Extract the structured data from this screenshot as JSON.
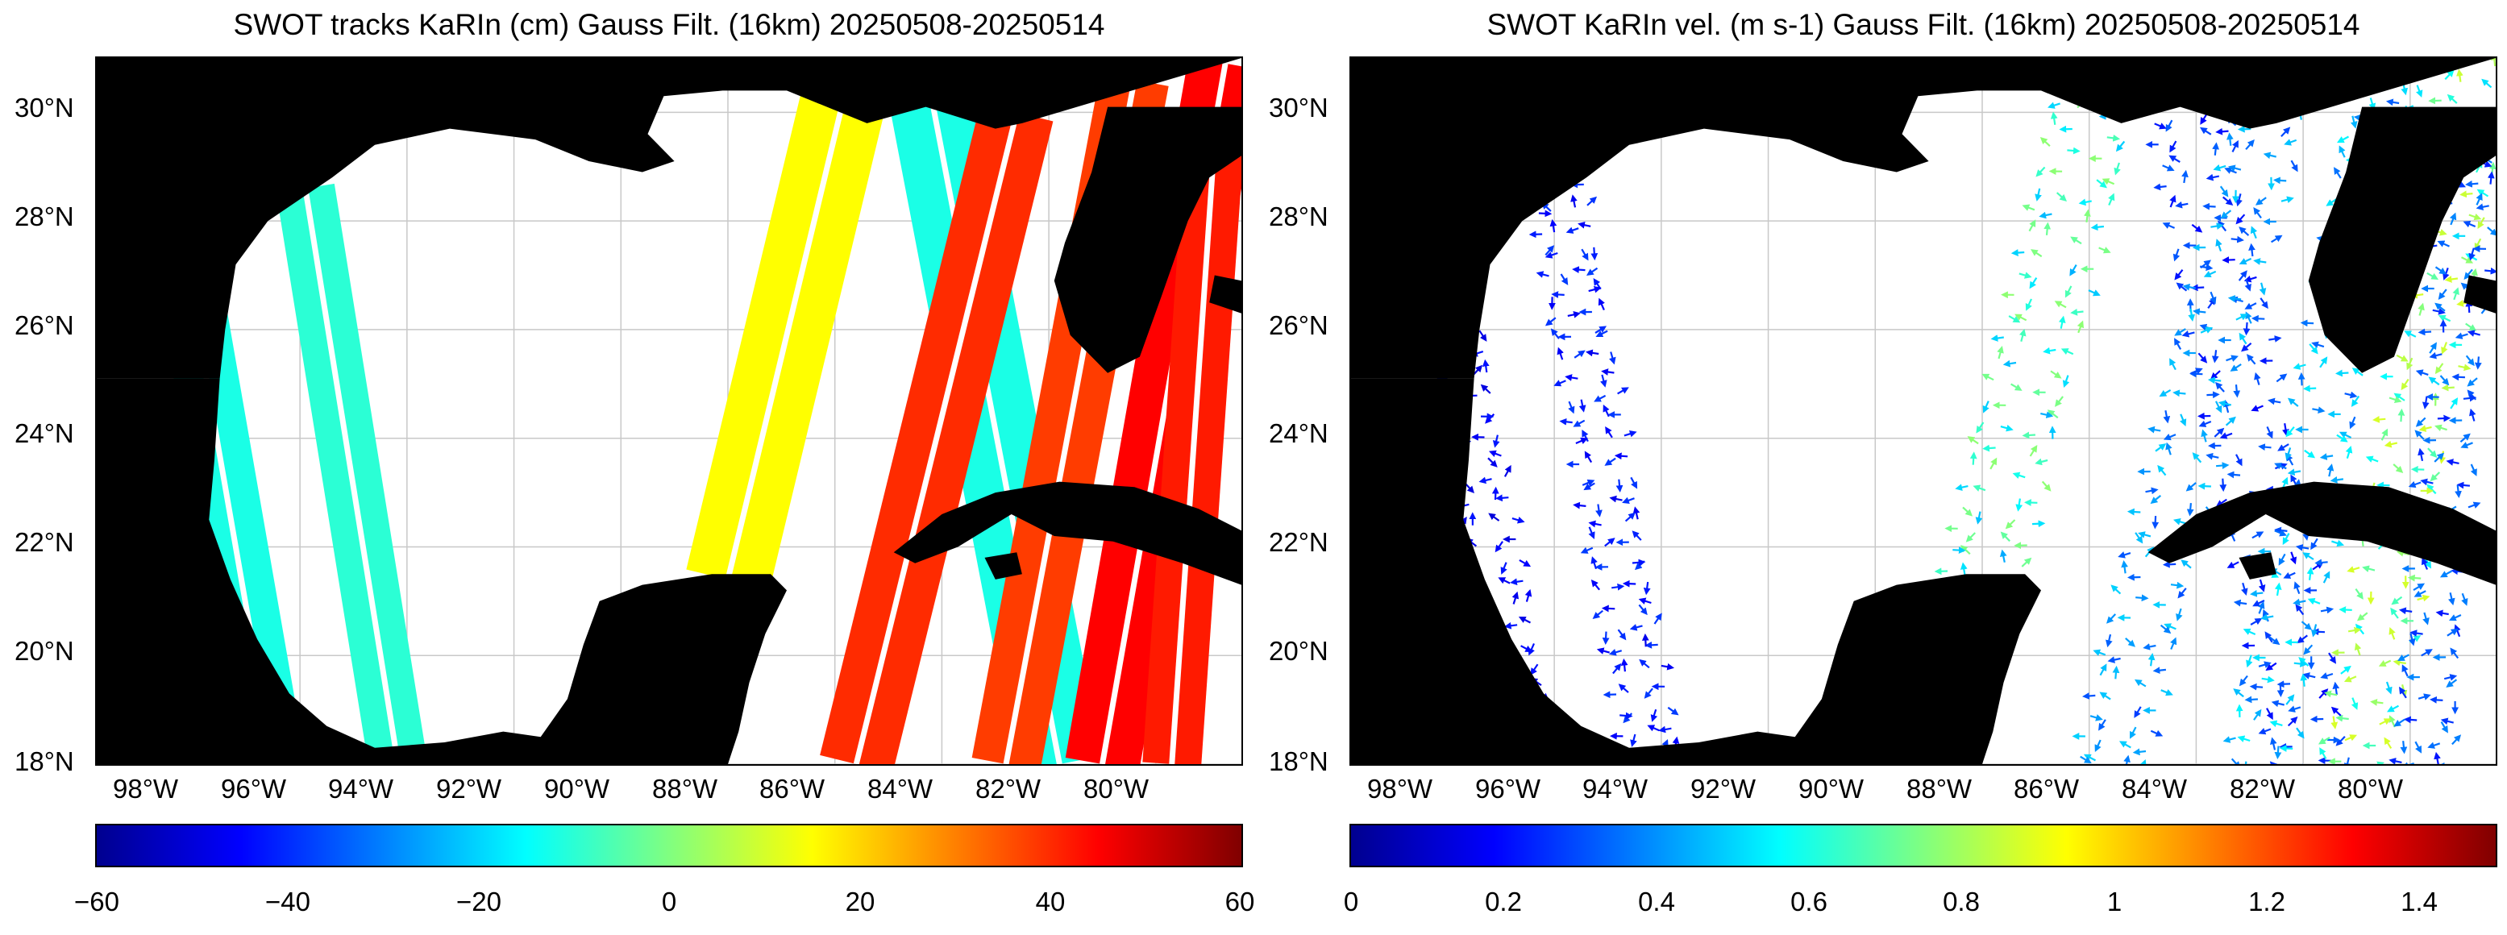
{
  "colors": {
    "land": "#000000",
    "ocean": "#ffffff",
    "grid": "#c8c8c8",
    "jet": [
      "#00008f",
      "#0000ff",
      "#0080ff",
      "#00ffff",
      "#80ff80",
      "#ffff00",
      "#ff8000",
      "#ff0000",
      "#800000"
    ]
  },
  "map_grid": {
    "lon_min": -99.8,
    "lon_max": -78.4,
    "lat_min": 18,
    "lat_max": 31,
    "lat_ticks": [
      30,
      28,
      26,
      24,
      22,
      20,
      18
    ],
    "lat_labels": [
      "30°N",
      "28°N",
      "26°N",
      "24°N",
      "22°N",
      "20°N",
      "18°N"
    ],
    "lon_ticks": [
      -98,
      -96,
      -94,
      -92,
      -90,
      -88,
      -86,
      -84,
      -82,
      -80
    ],
    "lon_labels": [
      "98°W",
      "96°W",
      "94°W",
      "92°W",
      "90°W",
      "88°W",
      "86°W",
      "84°W",
      "82°W",
      "80°W"
    ]
  },
  "panels": [
    {
      "title": "SWOT tracks KaRIn (cm) Gauss Filt. (16km) 20250508-20250514",
      "kind": "ssh",
      "colorbar": {
        "min": -60,
        "max": 60,
        "ticks": [
          -60,
          -40,
          -20,
          0,
          20,
          40,
          60
        ],
        "tick_labels": [
          "−60",
          "−40",
          "−20",
          "0",
          "20",
          "40",
          "60"
        ]
      }
    },
    {
      "title": "SWOT KaRIn vel. (m s-1) Gauss Filt. (16km) 20250508-20250514",
      "kind": "vel",
      "colorbar": {
        "min": 0,
        "max": 1.5,
        "ticks": [
          0,
          0.2,
          0.4,
          0.6,
          0.8,
          1,
          1.2,
          1.4
        ],
        "tick_labels": [
          "0",
          "0.2",
          "0.4",
          "0.6",
          "0.8",
          "1",
          "1.2",
          "1.4"
        ]
      }
    }
  ],
  "tracks": [
    {
      "n_lon": -95.9,
      "n_lat": 28.6,
      "s_lon": -94.2,
      "s_lat": 18.2,
      "width_deg": 1.1,
      "ssh": -10,
      "vel": 0.25
    },
    {
      "n_lon": -98.3,
      "n_lat": 28.2,
      "s_lon": -96.6,
      "s_lat": 18.6,
      "width_deg": 1.2,
      "ssh": -12,
      "vel": 0.2
    },
    {
      "n_lon": -85.8,
      "n_lat": 30.4,
      "s_lon": -88.0,
      "s_lat": 21.4,
      "width_deg": 1.6,
      "ssh": 15,
      "vel": 0.7
    },
    {
      "n_lon": -84.2,
      "n_lat": 30.3,
      "s_lon": -81.8,
      "s_lat": 18.0,
      "width_deg": 1.6,
      "ssh": -12,
      "vel": 0.3
    },
    {
      "n_lon": -82.6,
      "n_lat": 30.0,
      "s_lon": -85.6,
      "s_lat": 18.0,
      "width_deg": 1.4,
      "ssh": 40,
      "vel": 0.45
    },
    {
      "n_lon": -80.4,
      "n_lat": 30.6,
      "s_lon": -82.8,
      "s_lat": 18.0,
      "width_deg": 1.3,
      "ssh": 38,
      "vel": 0.5
    },
    {
      "n_lon": -78.7,
      "n_lat": 30.9,
      "s_lon": -81.0,
      "s_lat": 18.0,
      "width_deg": 1.4,
      "ssh": 45,
      "vel": 0.8
    },
    {
      "n_lon": -78.9,
      "n_lat": 29.5,
      "s_lon": -79.7,
      "s_lat": 18.0,
      "width_deg": 1.1,
      "ssh": 42,
      "vel": 0.35
    }
  ]
}
